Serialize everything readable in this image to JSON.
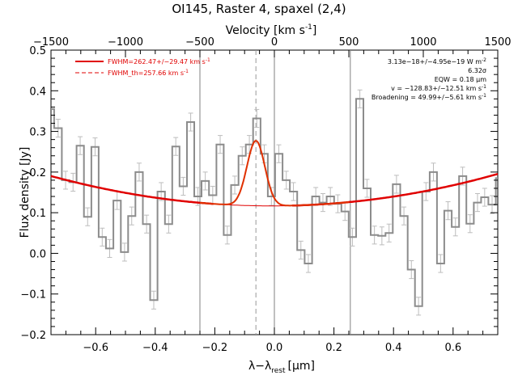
{
  "chart_data": {
    "type": "line",
    "title": "OI145, Raster 4, spaxel (2,4)",
    "xlabel": "λ−λ",
    "xlabel_sub": "rest",
    "xlabel_unit": "[μm]",
    "ylabel": "Flux density [Jy]",
    "top_axis_label": "Velocity [km s",
    "top_axis_label_sup": "-1",
    "top_axis_label_end": "]",
    "xlim": [
      -0.75,
      0.75
    ],
    "ylim": [
      -0.2,
      0.5
    ],
    "top_xlim": [
      -1500,
      1500
    ],
    "x_ticks": [
      -0.6,
      -0.4,
      -0.2,
      0.0,
      0.2,
      0.4,
      0.6
    ],
    "x_tick_labels": [
      "−0.6",
      "−0.4",
      "−0.2",
      "0.0",
      "0.2",
      "0.4",
      "0.6"
    ],
    "y_ticks": [
      -0.2,
      -0.1,
      0.0,
      0.1,
      0.2,
      0.3,
      0.4,
      0.5
    ],
    "y_tick_labels": [
      "−0.2",
      "−0.1",
      "0.0",
      "0.1",
      "0.2",
      "0.3",
      "0.4",
      "0.5"
    ],
    "top_ticks": [
      -1500,
      -1000,
      -500,
      0,
      500,
      1000,
      1500
    ],
    "top_tick_labels": [
      "−1500",
      "−1000",
      "−500",
      "0",
      "500",
      "1000",
      "1500"
    ],
    "vertical_lines": [
      -0.25,
      0.0,
      0.255
    ],
    "dashed_line": -0.062,
    "legend": [
      {
        "text": "FWHM=262.47+/−29.47 km s",
        "sup": "-1",
        "style": "solid"
      },
      {
        "text": "FWHM_th=257.66 km s",
        "sup": "-1",
        "style": "dashed"
      }
    ],
    "annotations": [
      {
        "text": "3.13e−18+/−4.95e−19 W m",
        "sup": "-2"
      },
      {
        "text": "6.32σ",
        "sup": ""
      },
      {
        "text": "EQW = 0.18 μm",
        "sup": ""
      },
      {
        "text": "v = −128.83+/−12.51 km s",
        "sup": "-1"
      },
      {
        "text": "Broadening = 49.99+/−5.61 km s",
        "sup": "-1"
      }
    ],
    "series": [
      {
        "kind": "spectrum",
        "x": [
          -0.753,
          -0.726,
          -0.701,
          -0.676,
          -0.652,
          -0.627,
          -0.602,
          -0.578,
          -0.553,
          -0.528,
          -0.503,
          -0.479,
          -0.454,
          -0.429,
          -0.405,
          -0.38,
          -0.355,
          -0.331,
          -0.306,
          -0.281,
          -0.257,
          -0.232,
          -0.207,
          -0.182,
          -0.158,
          -0.133,
          -0.108,
          -0.084,
          -0.059,
          -0.034,
          -0.01,
          0.015,
          0.04,
          0.064,
          0.089,
          0.114,
          0.139,
          0.163,
          0.188,
          0.213,
          0.237,
          0.262,
          0.287,
          0.311,
          0.336,
          0.361,
          0.385,
          0.41,
          0.435,
          0.46,
          0.484,
          0.509,
          0.534,
          0.558,
          0.583,
          0.608,
          0.632,
          0.657,
          0.682,
          0.706,
          0.731,
          0.756
        ],
        "y": [
          0.355,
          0.308,
          0.18,
          0.175,
          0.265,
          0.09,
          0.262,
          0.04,
          0.012,
          0.13,
          0.003,
          0.092,
          0.2,
          0.072,
          -0.115,
          0.152,
          0.072,
          0.263,
          0.165,
          0.323,
          0.14,
          0.178,
          0.143,
          0.268,
          0.045,
          0.168,
          0.24,
          0.268,
          0.332,
          0.245,
          0.14,
          0.245,
          0.18,
          0.152,
          0.008,
          -0.025,
          0.14,
          0.125,
          0.14,
          0.122,
          0.103,
          0.04,
          0.38,
          0.16,
          0.045,
          0.043,
          0.05,
          0.17,
          0.092,
          -0.04,
          -0.13,
          0.152,
          0.2,
          -0.025,
          0.105,
          0.065,
          0.19,
          0.073,
          0.125,
          0.138,
          0.12,
          0.185
        ],
        "error": 0.022
      },
      {
        "kind": "fit",
        "center": -0.062,
        "amplitude": 0.16,
        "sigma": 0.03,
        "baseline": {
          "a": 0.1168,
          "b": 0.0034,
          "c": 0.1351
        }
      }
    ]
  }
}
